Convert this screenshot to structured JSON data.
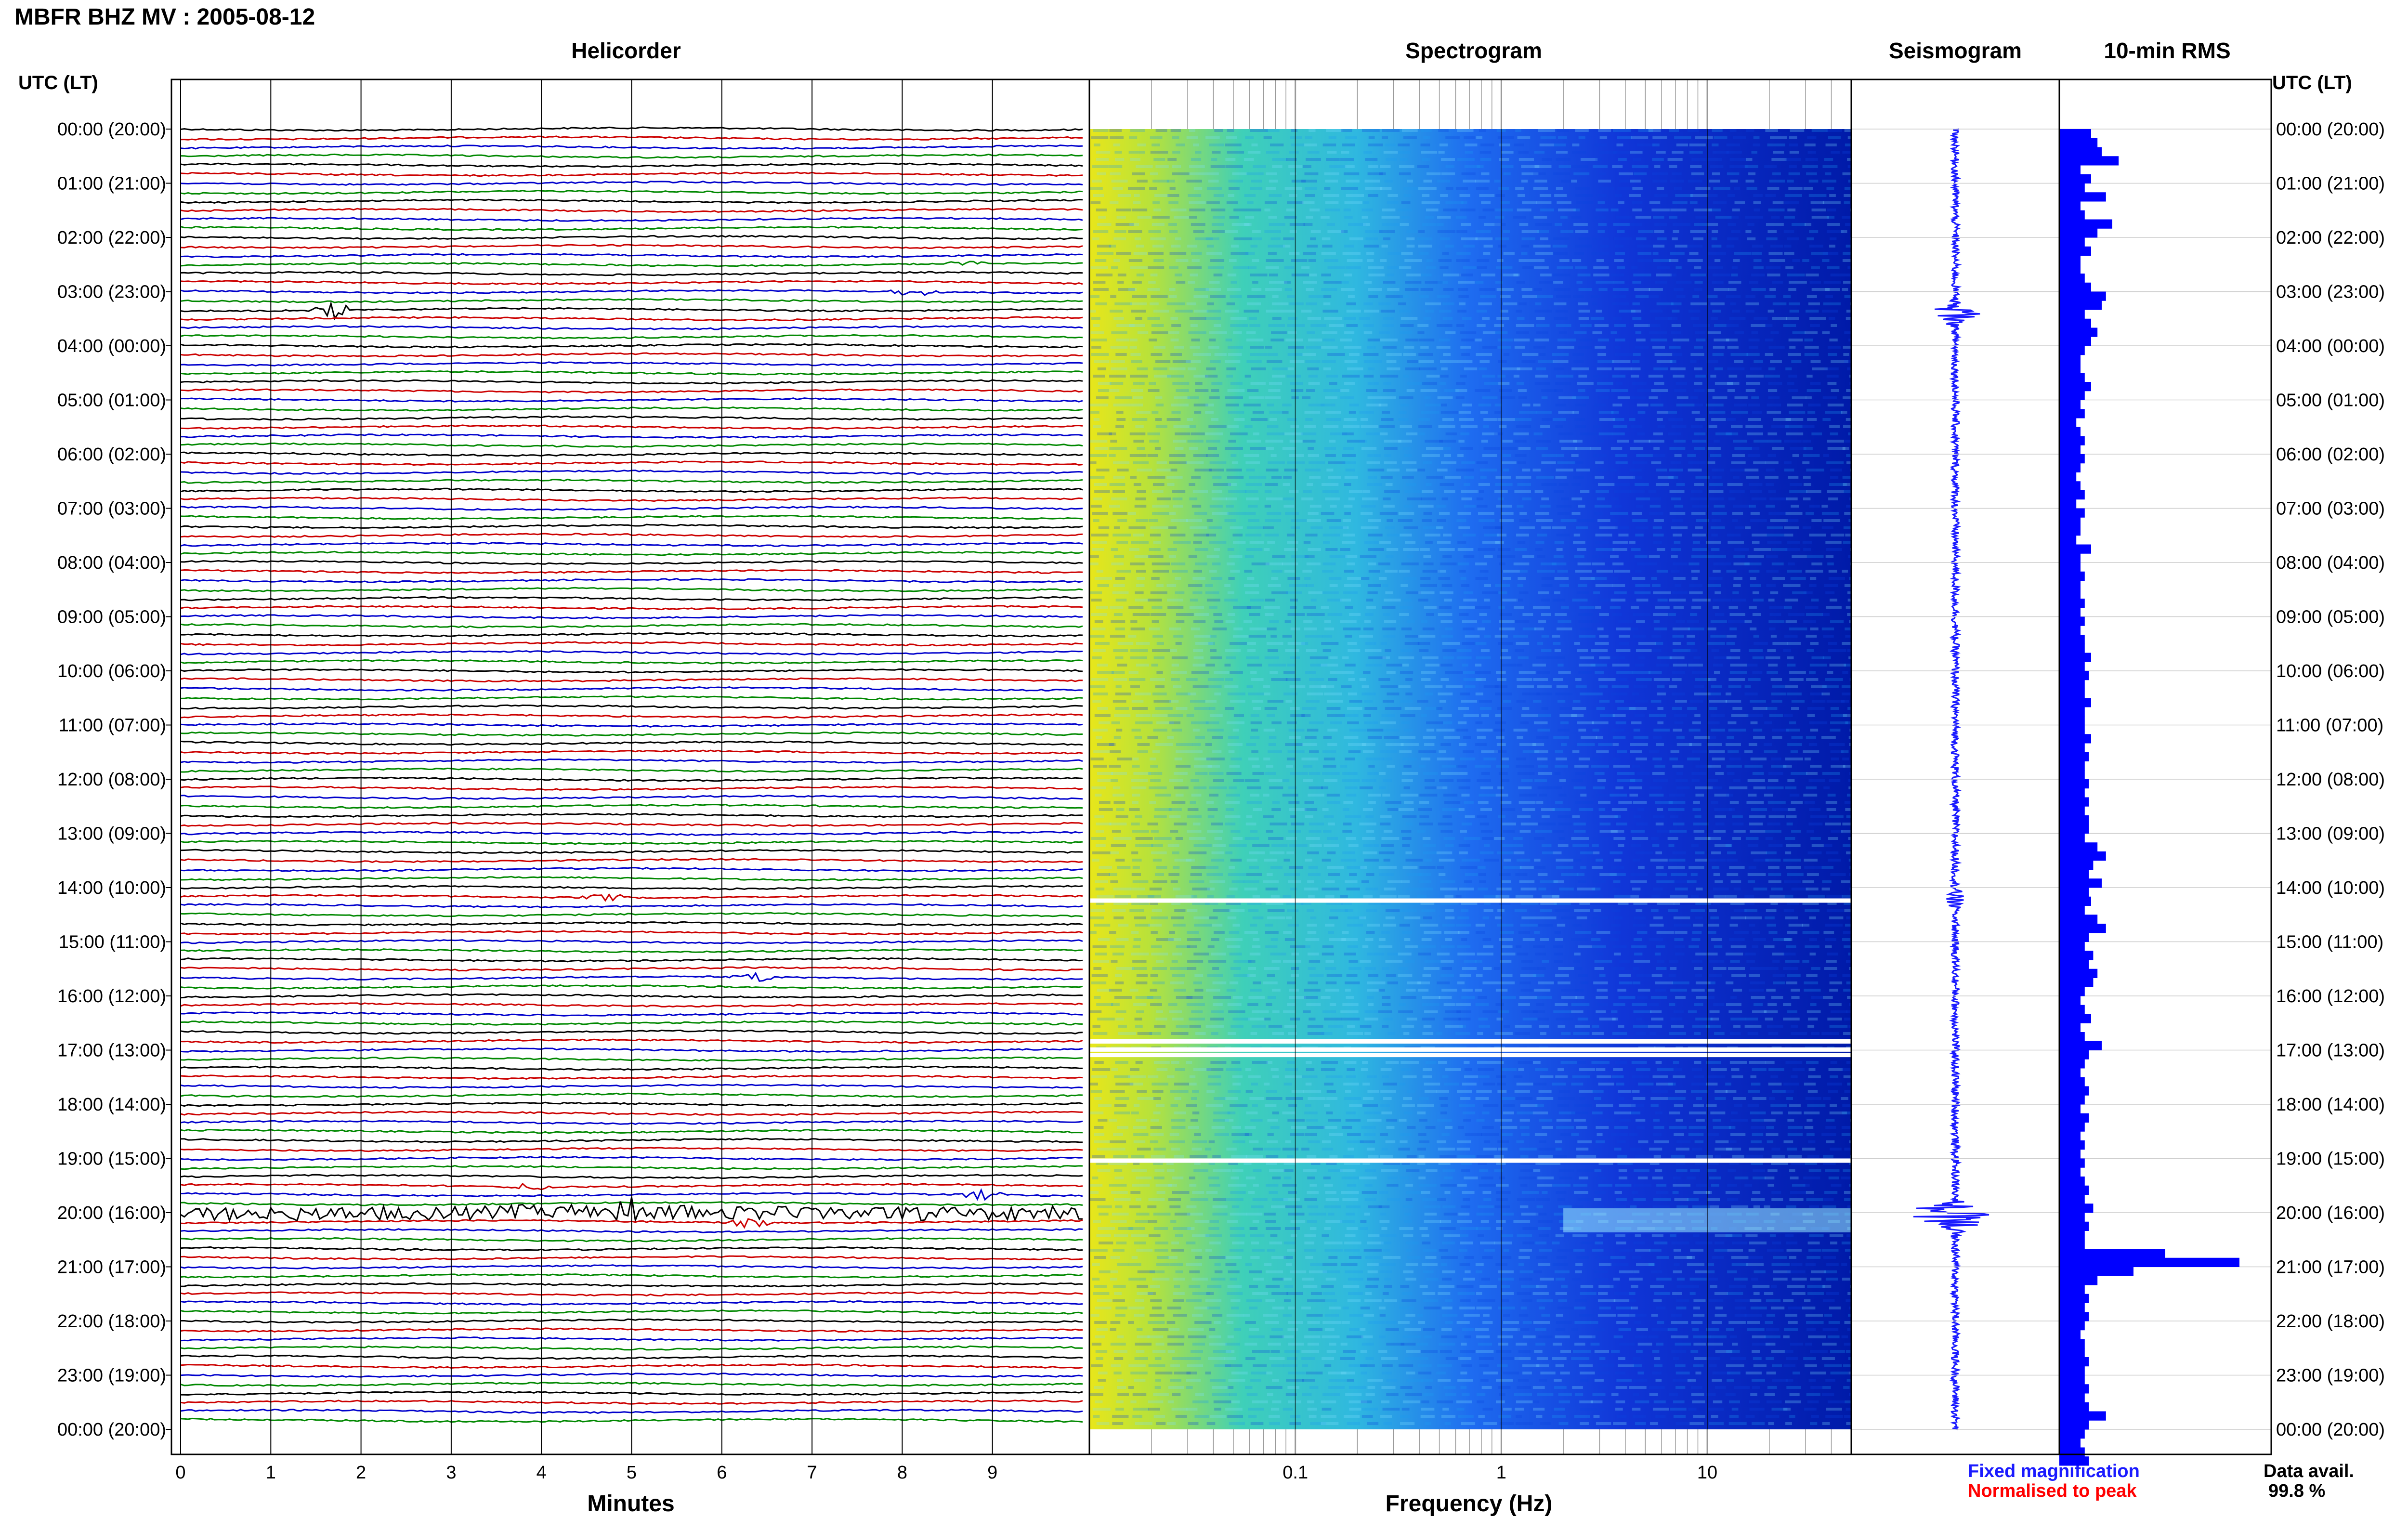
{
  "header": {
    "title": "MBFR BHZ MV : 2005-08-12"
  },
  "panels": {
    "helicorder": "Helicorder",
    "spectrogram": "Spectrogram",
    "seismogram": "Seismogram",
    "rms": "10-min RMS"
  },
  "axis": {
    "utc_label": "UTC (LT)",
    "minutes_label": "Minutes",
    "frequency_label": "Frequency (Hz)"
  },
  "legend": {
    "fixed": "Fixed magnification",
    "normalised": "Normalised to peak"
  },
  "availability": {
    "label": "Data avail.",
    "value": "99.8 %"
  },
  "colors": {
    "trace_cycle": [
      "#000000",
      "#cc0000",
      "#0000cc",
      "#008800"
    ],
    "fixed": "#1a1aff",
    "normalised": "#ff0000",
    "rms_bar": "#0000ff"
  },
  "chart_data": [
    {
      "type": "line",
      "name": "helicorder",
      "title": "Helicorder",
      "xlabel": "Minutes",
      "x_ticks": [
        0,
        1,
        2,
        3,
        4,
        5,
        6,
        7,
        8,
        9
      ],
      "xlim": [
        0,
        10
      ],
      "y_tick_labels": [
        "00:00 (20:00)",
        "01:00 (21:00)",
        "02:00 (22:00)",
        "03:00 (23:00)",
        "04:00 (00:00)",
        "05:00 (01:00)",
        "06:00 (02:00)",
        "07:00 (03:00)",
        "08:00 (04:00)",
        "09:00 (05:00)",
        "10:00 (06:00)",
        "11:00 (07:00)",
        "12:00 (08:00)",
        "13:00 (09:00)",
        "14:00 (10:00)",
        "15:00 (11:00)",
        "16:00 (12:00)",
        "17:00 (13:00)",
        "18:00 (14:00)",
        "19:00 (15:00)",
        "20:00 (16:00)",
        "21:00 (17:00)",
        "22:00 (18:00)",
        "23:00 (19:00)",
        "00:00 (20:00)"
      ],
      "lines_per_hour": 6,
      "events": [
        {
          "hour": 2.5,
          "minute": 8.7,
          "amp": 0.4
        },
        {
          "hour": 3.0,
          "minute": 8.1,
          "amp": 0.5
        },
        {
          "hour": 3.33,
          "minute": 1.7,
          "amp": 0.9
        },
        {
          "hour": 14.17,
          "minute": 4.7,
          "amp": 0.5
        },
        {
          "hour": 15.67,
          "minute": 6.4,
          "amp": 0.5
        },
        {
          "hour": 19.5,
          "minute": 3.9,
          "amp": 0.5
        },
        {
          "hour": 19.67,
          "minute": 8.9,
          "amp": 0.6
        },
        {
          "hour": 20.0,
          "minute": 5.0,
          "amp": 1.0
        },
        {
          "hour": 20.17,
          "minute": 6.3,
          "amp": 0.5
        }
      ]
    },
    {
      "type": "heatmap",
      "name": "spectrogram",
      "title": "Spectrogram",
      "xlabel": "Frequency (Hz)",
      "x_scale": "log",
      "xlim": [
        0.01,
        50
      ],
      "x_tick_labels": [
        "0.1",
        "1",
        "10"
      ],
      "x_tick_values": [
        0.1,
        1,
        10
      ],
      "data_gaps_hours": [
        14.2,
        16.8,
        16.95,
        17.05,
        19.0
      ]
    },
    {
      "type": "line",
      "name": "seismogram",
      "title": "Seismogram",
      "bursts": [
        {
          "hour": 3.4,
          "amp": 0.6
        },
        {
          "hour": 14.2,
          "amp": 0.2
        },
        {
          "hour": 20.0,
          "amp": 1.0
        },
        {
          "hour": 20.2,
          "amp": 0.5
        }
      ]
    },
    {
      "type": "bar",
      "name": "rms",
      "title": "10-min RMS",
      "orientation": "horizontal",
      "bins_per_hour": 6,
      "values": [
        0.15,
        0.18,
        0.2,
        0.28,
        0.1,
        0.15,
        0.12,
        0.22,
        0.1,
        0.12,
        0.25,
        0.18,
        0.12,
        0.15,
        0.1,
        0.1,
        0.12,
        0.15,
        0.22,
        0.2,
        0.12,
        0.15,
        0.18,
        0.15,
        0.12,
        0.1,
        0.1,
        0.12,
        0.15,
        0.12,
        0.1,
        0.12,
        0.08,
        0.1,
        0.12,
        0.1,
        0.12,
        0.1,
        0.08,
        0.1,
        0.12,
        0.08,
        0.12,
        0.1,
        0.1,
        0.08,
        0.15,
        0.1,
        0.1,
        0.12,
        0.1,
        0.1,
        0.12,
        0.1,
        0.12,
        0.1,
        0.12,
        0.12,
        0.15,
        0.12,
        0.14,
        0.12,
        0.12,
        0.15,
        0.12,
        0.12,
        0.12,
        0.15,
        0.12,
        0.14,
        0.12,
        0.12,
        0.14,
        0.12,
        0.14,
        0.12,
        0.14,
        0.14,
        0.12,
        0.18,
        0.22,
        0.16,
        0.14,
        0.2,
        0.14,
        0.15,
        0.12,
        0.18,
        0.22,
        0.14,
        0.12,
        0.16,
        0.14,
        0.18,
        0.16,
        0.12,
        0.1,
        0.12,
        0.15,
        0.1,
        0.12,
        0.2,
        0.14,
        0.12,
        0.1,
        0.12,
        0.14,
        0.12,
        0.1,
        0.14,
        0.12,
        0.1,
        0.12,
        0.1,
        0.12,
        0.1,
        0.12,
        0.14,
        0.12,
        0.16,
        0.12,
        0.14,
        0.12,
        0.12,
        0.5,
        0.85,
        0.35,
        0.18,
        0.12,
        0.14,
        0.12,
        0.14,
        0.12,
        0.1,
        0.12,
        0.12,
        0.14,
        0.12,
        0.12,
        0.14,
        0.12,
        0.14,
        0.22,
        0.14,
        0.12,
        0.1,
        0.12,
        0.14
      ]
    }
  ]
}
